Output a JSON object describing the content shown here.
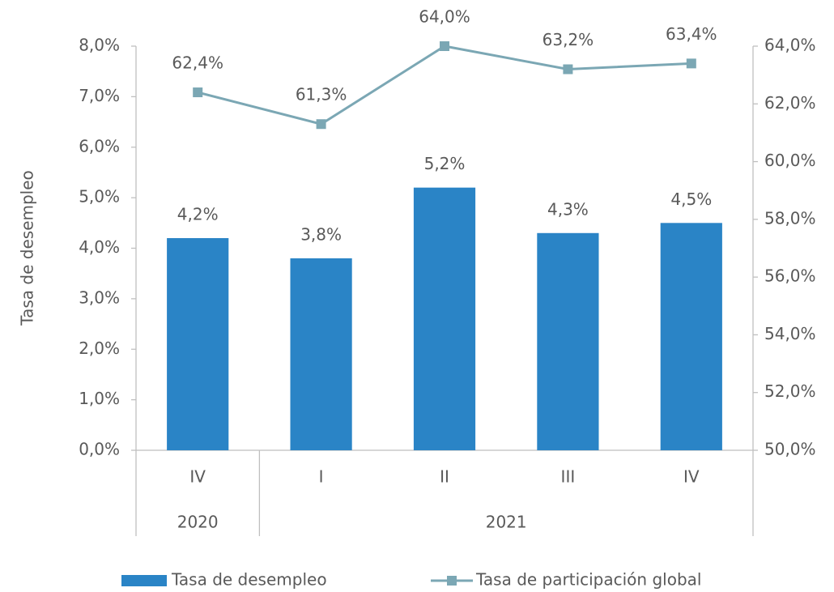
{
  "chart_data": {
    "type": "bar",
    "y_label": "Tasa de desempleo",
    "categories": [
      "IV",
      "I",
      "II",
      "III",
      "IV"
    ],
    "x_groups": [
      {
        "label": "2020",
        "count": 1
      },
      {
        "label": "2021",
        "count": 4
      }
    ],
    "ylim": [
      0,
      8
    ],
    "yticks": [
      {
        "value": 0,
        "label": "0,0%"
      },
      {
        "value": 1,
        "label": "1,0%"
      },
      {
        "value": 2,
        "label": "2,0%"
      },
      {
        "value": 3,
        "label": "3,0%"
      },
      {
        "value": 4,
        "label": "4,0%"
      },
      {
        "value": 5,
        "label": "5,0%"
      },
      {
        "value": 6,
        "label": "6,0%"
      },
      {
        "value": 7,
        "label": "7,0%"
      },
      {
        "value": 8,
        "label": "8,0%"
      }
    ],
    "y2lim": [
      50,
      64
    ],
    "y2ticks": [
      {
        "value": 50,
        "label": "50,0%"
      },
      {
        "value": 52,
        "label": "52,0%"
      },
      {
        "value": 54,
        "label": "54,0%"
      },
      {
        "value": 56,
        "label": "56,0%"
      },
      {
        "value": 58,
        "label": "58,0%"
      },
      {
        "value": 60,
        "label": "60,0%"
      },
      {
        "value": 62,
        "label": "62,0%"
      },
      {
        "value": 64,
        "label": "64,0%"
      }
    ],
    "series": [
      {
        "name": "Tasa de desempleo",
        "type": "bar",
        "color": "#2a84c6",
        "values": [
          4.2,
          3.8,
          5.2,
          4.3,
          4.5
        ],
        "value_labels": [
          "4,2%",
          "3,8%",
          "5,2%",
          "4,3%",
          "4,5%"
        ]
      },
      {
        "name": "Tasa de participación global",
        "type": "line",
        "axis": "y2",
        "color": "#7ba7b4",
        "values": [
          62.4,
          61.3,
          64.0,
          63.2,
          63.4
        ],
        "value_labels": [
          "62,4%",
          "61,3%",
          "64,0%",
          "63,2%",
          "63,4%"
        ]
      }
    ],
    "legend": "bottom"
  }
}
